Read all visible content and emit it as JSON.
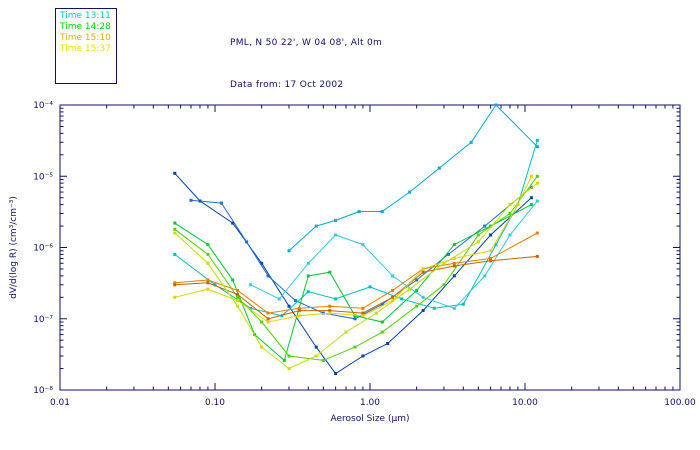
{
  "header": {
    "line1": "PML, N 50 22', W 04 08', Alt 0m",
    "line2": "Data from: 17 Oct 2002"
  },
  "legend": {
    "items": [
      {
        "label": "Time 13:11",
        "color": "#00c8dc"
      },
      {
        "label": "Time 14:28",
        "color": "#00d200"
      },
      {
        "label": "Time 15:10",
        "color": "#e6aa00"
      },
      {
        "label": "Time 15:37",
        "color": "#e6e600"
      }
    ]
  },
  "colors": {
    "axis": "#10106a",
    "header_text": "#10106a",
    "background": "#ffffff"
  },
  "chart_data": {
    "type": "line",
    "title": "",
    "x_axis": {
      "label": "Aerosol Size (μm)",
      "scale": "log",
      "range": [
        0.01,
        100
      ],
      "ticks": [
        0.01,
        0.1,
        1,
        10,
        100
      ],
      "tick_labels": [
        "0.01",
        "0.10",
        "1.00",
        "10.00",
        "100.00"
      ]
    },
    "y_axis": {
      "label": "dV/d(log R) (cm³/cm⁻³)",
      "scale": "log",
      "range": [
        1e-08,
        0.0001
      ],
      "ticks": [
        1e-08,
        1e-07,
        1e-06,
        1e-05,
        0.0001
      ],
      "tick_labels": [
        "10⁻⁸",
        "10⁻⁷",
        "10⁻⁶",
        "10⁻⁵",
        "10⁻⁴"
      ]
    },
    "grid": false,
    "legend_position": "top-left",
    "series": [
      {
        "name": "Time 13:11 (a)",
        "color": "#0041aa",
        "points": [
          [
            0.055,
            1.1e-05
          ],
          [
            0.08,
            4.5e-06
          ],
          [
            0.13,
            2.2e-06
          ],
          [
            0.2,
            6e-07
          ],
          [
            0.3,
            1.5e-07
          ],
          [
            0.45,
            4e-08
          ],
          [
            0.6,
            1.7e-08
          ],
          [
            0.9,
            3e-08
          ],
          [
            1.3,
            4.5e-08
          ],
          [
            2.2,
            1.3e-07
          ],
          [
            3.5,
            4e-07
          ],
          [
            6,
            1.5e-06
          ],
          [
            11,
            5e-06
          ]
        ]
      },
      {
        "name": "Time 13:11 (b)",
        "color": "#1e6ed2",
        "points": [
          [
            0.07,
            4.6e-06
          ],
          [
            0.11,
            4.2e-06
          ],
          [
            0.16,
            1.2e-06
          ],
          [
            0.22,
            4e-07
          ],
          [
            0.33,
            1.8e-07
          ],
          [
            0.5,
            1.2e-07
          ],
          [
            0.8,
            1e-07
          ],
          [
            1.2,
            1.6e-07
          ],
          [
            2,
            3.5e-07
          ],
          [
            3.2,
            8e-07
          ],
          [
            5.5,
            2e-06
          ],
          [
            11,
            7e-06
          ]
        ]
      },
      {
        "name": "Time 13:11 (c)",
        "color": "#00aadc",
        "points": [
          [
            0.3,
            9e-07
          ],
          [
            0.45,
            2e-06
          ],
          [
            0.6,
            2.4e-06
          ],
          [
            0.85,
            3.2e-06
          ],
          [
            1.2,
            3.2e-06
          ],
          [
            1.8,
            6e-06
          ],
          [
            2.8,
            1.3e-05
          ],
          [
            4.5,
            3e-05
          ],
          [
            6.5,
            0.0001
          ],
          [
            12,
            2.6e-05
          ]
        ]
      },
      {
        "name": "Time 13:11 (d)",
        "color": "#00bec8",
        "points": [
          [
            0.055,
            8e-07
          ],
          [
            0.1,
            3e-07
          ],
          [
            0.17,
            1.4e-07
          ],
          [
            0.27,
            1.1e-07
          ],
          [
            0.4,
            2.4e-07
          ],
          [
            0.6,
            1.9e-07
          ],
          [
            1,
            2.8e-07
          ],
          [
            1.6,
            1.9e-07
          ],
          [
            2.6,
            1.4e-07
          ],
          [
            4,
            1.6e-07
          ],
          [
            6.5,
            1.1e-06
          ],
          [
            9,
            4e-06
          ],
          [
            12,
            3.2e-05
          ]
        ]
      },
      {
        "name": "Time 13:11 (e)",
        "color": "#32c8e6",
        "points": [
          [
            0.17,
            3e-07
          ],
          [
            0.26,
            1.9e-07
          ],
          [
            0.4,
            6e-07
          ],
          [
            0.6,
            1.5e-06
          ],
          [
            0.9,
            1.1e-06
          ],
          [
            1.4,
            4e-07
          ],
          [
            2.2,
            2e-07
          ],
          [
            3.5,
            1.4e-07
          ],
          [
            5.5,
            4e-07
          ],
          [
            8,
            1.5e-06
          ],
          [
            12,
            4.5e-06
          ]
        ]
      },
      {
        "name": "Time 14:28 (a)",
        "color": "#00c832",
        "points": [
          [
            0.055,
            2.2e-06
          ],
          [
            0.09,
            1.1e-06
          ],
          [
            0.13,
            3.5e-07
          ],
          [
            0.18,
            6e-08
          ],
          [
            0.28,
            2.6e-08
          ],
          [
            0.4,
            4e-07
          ],
          [
            0.55,
            4.5e-07
          ],
          [
            0.8,
            1.1e-07
          ],
          [
            1.2,
            9e-08
          ],
          [
            2,
            2.5e-07
          ],
          [
            3.5,
            1.1e-06
          ],
          [
            6,
            2e-06
          ],
          [
            11,
            4e-06
          ]
        ]
      },
      {
        "name": "Time 14:28 (b)",
        "color": "#50d200",
        "points": [
          [
            0.055,
            1.8e-06
          ],
          [
            0.09,
            8e-07
          ],
          [
            0.14,
            2e-07
          ],
          [
            0.2,
            9e-08
          ],
          [
            0.3,
            3e-08
          ],
          [
            0.5,
            2.6e-08
          ],
          [
            0.8,
            4e-08
          ],
          [
            1.2,
            6.5e-08
          ],
          [
            2,
            1.5e-07
          ],
          [
            3,
            3e-07
          ],
          [
            5,
            1.5e-06
          ],
          [
            8,
            3e-06
          ],
          [
            12,
            1e-05
          ]
        ]
      },
      {
        "name": "Time 15:10 (a)",
        "color": "#e08200",
        "points": [
          [
            0.055,
            3.2e-07
          ],
          [
            0.09,
            3.5e-07
          ],
          [
            0.14,
            2.5e-07
          ],
          [
            0.22,
            1.2e-07
          ],
          [
            0.35,
            1.4e-07
          ],
          [
            0.55,
            1.5e-07
          ],
          [
            0.9,
            1.4e-07
          ],
          [
            1.4,
            2.5e-07
          ],
          [
            2.2,
            5e-07
          ],
          [
            3.5,
            6e-07
          ],
          [
            6,
            7e-07
          ],
          [
            12,
            1.6e-06
          ]
        ]
      },
      {
        "name": "Time 15:10 (b)",
        "color": "#c86400",
        "points": [
          [
            0.055,
            3e-07
          ],
          [
            0.09,
            3.2e-07
          ],
          [
            0.14,
            2.2e-07
          ],
          [
            0.22,
            1e-07
          ],
          [
            0.35,
            1.3e-07
          ],
          [
            0.55,
            1.3e-07
          ],
          [
            0.9,
            1.2e-07
          ],
          [
            1.4,
            2e-07
          ],
          [
            2.2,
            4.5e-07
          ],
          [
            3.5,
            5.5e-07
          ],
          [
            6,
            6.5e-07
          ],
          [
            12,
            7.5e-07
          ]
        ]
      },
      {
        "name": "Time 15:37 (a)",
        "color": "#e6d200",
        "points": [
          [
            0.055,
            2e-07
          ],
          [
            0.09,
            2.6e-07
          ],
          [
            0.14,
            1.8e-07
          ],
          [
            0.22,
            9e-08
          ],
          [
            0.35,
            1.1e-07
          ],
          [
            0.55,
            1.2e-07
          ],
          [
            0.9,
            1.1e-07
          ],
          [
            1.4,
            1.8e-07
          ],
          [
            2.2,
            5e-07
          ],
          [
            3.5,
            7e-07
          ],
          [
            6,
            9e-07
          ],
          [
            9,
            4e-06
          ],
          [
            11,
            1e-05
          ]
        ]
      },
      {
        "name": "Time 15:37 (b)",
        "color": "#c8dc00",
        "points": [
          [
            0.055,
            1.6e-06
          ],
          [
            0.09,
            6e-07
          ],
          [
            0.14,
            1.5e-07
          ],
          [
            0.2,
            4e-08
          ],
          [
            0.3,
            2e-08
          ],
          [
            0.45,
            3e-08
          ],
          [
            0.7,
            6.5e-08
          ],
          [
            1.1,
            1.2e-07
          ],
          [
            1.8,
            2.6e-07
          ],
          [
            3,
            6e-07
          ],
          [
            5,
            1.2e-06
          ],
          [
            8,
            4e-06
          ],
          [
            12,
            8e-06
          ]
        ]
      }
    ]
  }
}
